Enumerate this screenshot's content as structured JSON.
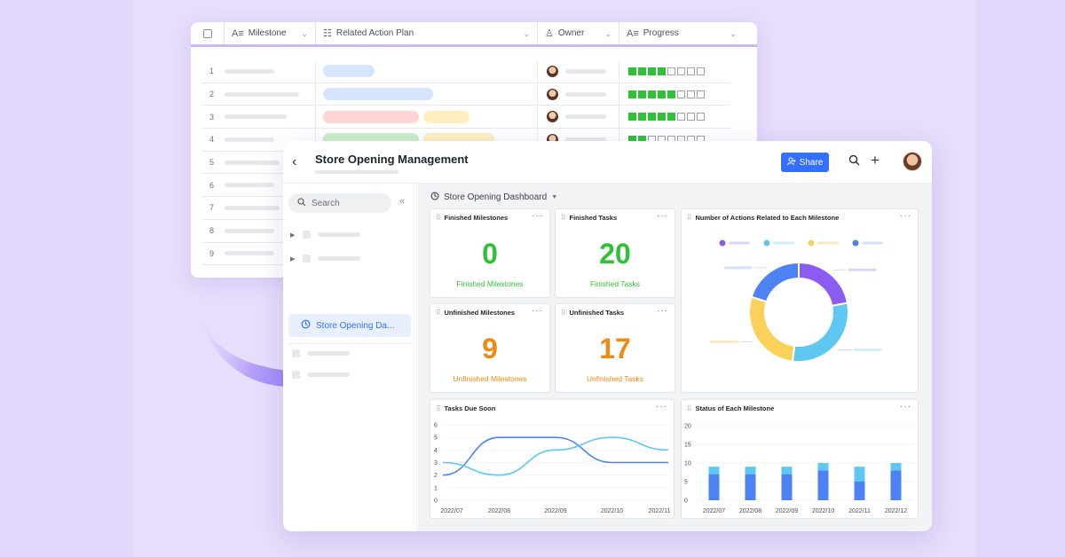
{
  "table": {
    "headers": [
      {
        "icon": "text-field-icon",
        "label": "Milestone"
      },
      {
        "icon": "list-icon",
        "label": "Related Action Plan"
      },
      {
        "icon": "person-icon",
        "label": "Owner"
      },
      {
        "icon": "text-field-icon",
        "label": "Progress"
      }
    ],
    "rows": [
      {
        "num": "1",
        "progress": 4
      },
      {
        "num": "2",
        "progress": 5
      },
      {
        "num": "3",
        "progress": 5
      },
      {
        "num": "4",
        "progress": 2
      },
      {
        "num": "5"
      },
      {
        "num": "6"
      },
      {
        "num": "7"
      },
      {
        "num": "8"
      },
      {
        "num": "9"
      }
    ],
    "progress_total": 8
  },
  "dashboard": {
    "title": "Store Opening Management",
    "share_label": "Share",
    "search_placeholder": "Search",
    "sidebar_active": "Store Opening Da...",
    "crumb": "Store Opening Dashboard",
    "cards": {
      "finished_milestones": {
        "title": "Finished Milestones",
        "value": "0",
        "label": "Finished Milestones"
      },
      "finished_tasks": {
        "title": "Finished Tasks",
        "value": "20",
        "label": "Finished Tasks"
      },
      "unfinished_milestones": {
        "title": "Unfinished Milestones",
        "value": "9",
        "label": "Unfinished Milestones"
      },
      "unfinished_tasks": {
        "title": "Unfinished Tasks",
        "value": "17",
        "label": "Unfinished Tasks"
      },
      "donut_title": "Number of Actions Related to Each Milestone",
      "line_title": "Tasks Due Soon",
      "bar_title": "Status of Each Milestone"
    }
  },
  "colors": {
    "accent": "#3370ff",
    "green": "#2fc137",
    "orange": "#f08a0e"
  },
  "chart_data": [
    {
      "type": "pie",
      "title": "Number of Actions Related to Each Milestone",
      "values": [
        22,
        30,
        28,
        20
      ],
      "colors": [
        "#8a5cf0",
        "#5ec8f2",
        "#fcd15a",
        "#4c82f2"
      ],
      "legend_placement": "top"
    },
    {
      "type": "line",
      "title": "Tasks Due Soon",
      "categories": [
        "2022/07",
        "2022/08",
        "2022/09",
        "2022/10",
        "2022/11"
      ],
      "yticks": [
        "0",
        "1",
        "2",
        "3",
        "4",
        "5",
        "6"
      ],
      "ylim": [
        0,
        6
      ],
      "series": [
        {
          "color": "#4c82f2",
          "values": [
            2,
            5,
            5,
            3,
            3
          ]
        },
        {
          "color": "#5ec8f2",
          "values": [
            3,
            2,
            4,
            5,
            4
          ]
        }
      ]
    },
    {
      "type": "bar",
      "title": "Status of Each Milestone",
      "categories": [
        "2022/07",
        "2022/08",
        "2022/09",
        "2022/10",
        "2022/11",
        "2022/12"
      ],
      "yticks": [
        "0",
        "5",
        "10",
        "15",
        "20"
      ],
      "ylim": [
        0,
        20
      ],
      "series": [
        {
          "color": "#4c82f2",
          "values": [
            7,
            7,
            7,
            8,
            5,
            8
          ]
        },
        {
          "color": "#5ec8f2",
          "values": [
            2,
            2,
            2,
            2,
            4,
            2
          ]
        }
      ]
    }
  ]
}
